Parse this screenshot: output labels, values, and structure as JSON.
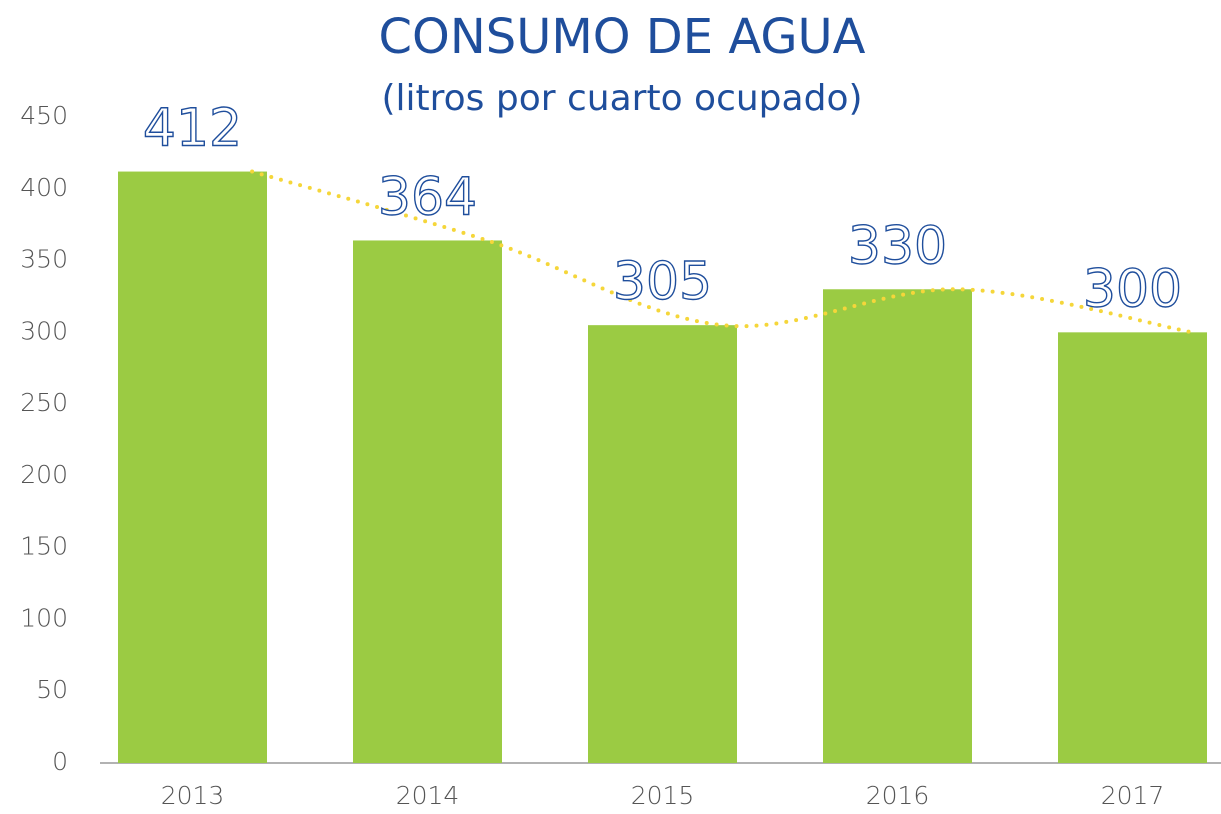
{
  "chart_data": {
    "type": "bar",
    "title": "CONSUMO DE AGUA",
    "subtitle": "(litros por cuarto ocupado)",
    "categories": [
      "2013",
      "2014",
      "2015",
      "2016",
      "2017"
    ],
    "values": [
      412,
      364,
      305,
      330,
      300
    ],
    "color": "#9bcb43",
    "trend_line": {
      "color": "#f5d63a",
      "style": "dotted"
    },
    "label_color": "#1f4e9c",
    "ylim": [
      0,
      450
    ],
    "yticks": [
      0,
      50,
      100,
      150,
      200,
      250,
      300,
      350,
      400,
      450
    ],
    "grid": false
  }
}
